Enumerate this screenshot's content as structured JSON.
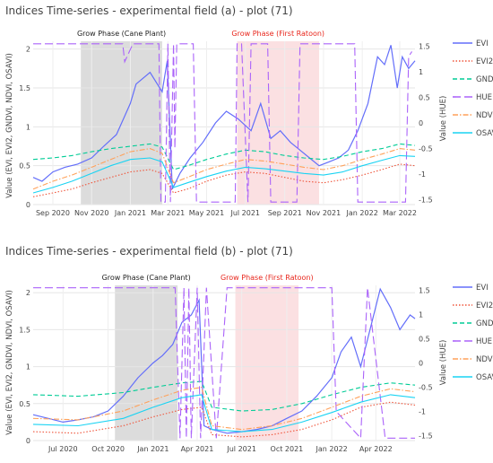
{
  "chart_data": [
    {
      "type": "line",
      "title": "Indices Time-series - experimental field (a) - plot (71)",
      "ylabel": "Value (EVI, EVI2, GNDVI, NDVI, OSAVI)",
      "y2label": "Value (HUE)",
      "ylim": [
        0,
        2.1
      ],
      "y2lim": [
        -1.6,
        1.6
      ],
      "xlim": [
        "2020-08-01",
        "2022-03-25"
      ],
      "xticks": [
        "Sep 2020",
        "Nov 2020",
        "Jan 2021",
        "Mar 2021",
        "May 2021",
        "Jul 2021",
        "Sep 2021",
        "Nov 2021",
        "Jan 2022",
        "Mar 2022"
      ],
      "xtick_dates": [
        "2020-09-01",
        "2020-11-01",
        "2021-01-01",
        "2021-03-01",
        "2021-05-01",
        "2021-07-01",
        "2021-09-01",
        "2021-11-01",
        "2022-01-01",
        "2022-03-01"
      ],
      "yticks": [
        "0",
        "0.5",
        "1",
        "1.5",
        "2"
      ],
      "yticks_vals": [
        0,
        0.5,
        1,
        1.5,
        2
      ],
      "y2ticks": [
        "-1.5",
        "-1",
        "-0.5",
        "0",
        "0.5",
        "1",
        "1.5"
      ],
      "y2ticks_vals": [
        -1.5,
        -1,
        -0.5,
        0,
        0.5,
        1,
        1.5
      ],
      "bands": [
        {
          "label": "Grow Phase (Cane Plant)",
          "start": "2020-10-15",
          "end": "2021-02-20",
          "fill": "#d6d6d6",
          "text_color": "#222222"
        },
        {
          "label": "Grow Phase (First Ratoon)",
          "start": "2021-06-18",
          "end": "2021-10-25",
          "fill": "#fadadd",
          "text_color": "#e8261c"
        }
      ],
      "series": [
        {
          "name": "EVI",
          "axis": "y",
          "color": "#636efa",
          "dash": "solid",
          "x": [
            "2020-08-01",
            "2020-08-15",
            "2020-09-01",
            "2020-09-20",
            "2020-10-10",
            "2020-11-01",
            "2020-11-20",
            "2020-12-10",
            "2021-01-01",
            "2021-01-10",
            "2021-02-01",
            "2021-02-20",
            "2021-02-28",
            "2021-03-08",
            "2021-03-20",
            "2021-04-05",
            "2021-04-25",
            "2021-05-15",
            "2021-06-01",
            "2021-06-20",
            "2021-07-10",
            "2021-07-25",
            "2021-08-10",
            "2021-08-25",
            "2021-09-10",
            "2021-09-25",
            "2021-10-10",
            "2021-10-25",
            "2021-11-10",
            "2021-11-25",
            "2021-12-10",
            "2021-12-25",
            "2022-01-10",
            "2022-01-25",
            "2022-02-05",
            "2022-02-15",
            "2022-02-25",
            "2022-03-05",
            "2022-03-15",
            "2022-03-25"
          ],
          "values": [
            0.35,
            0.3,
            0.42,
            0.48,
            0.52,
            0.6,
            0.75,
            0.9,
            1.3,
            1.55,
            1.7,
            1.45,
            1.85,
            0.2,
            0.4,
            0.6,
            0.8,
            1.05,
            1.2,
            1.1,
            0.95,
            1.3,
            0.85,
            0.95,
            0.8,
            0.7,
            0.6,
            0.5,
            0.55,
            0.6,
            0.7,
            0.95,
            1.3,
            1.9,
            1.8,
            2.05,
            1.5,
            1.9,
            1.75,
            1.85
          ]
        },
        {
          "name": "EVI2",
          "axis": "y",
          "color": "#ef553b",
          "dash": "dot",
          "x": [
            "2020-08-01",
            "2020-09-01",
            "2020-10-01",
            "2020-11-01",
            "2020-12-01",
            "2021-01-01",
            "2021-02-01",
            "2021-02-20",
            "2021-03-10",
            "2021-04-01",
            "2021-05-01",
            "2021-06-01",
            "2021-07-01",
            "2021-08-01",
            "2021-09-01",
            "2021-10-01",
            "2021-11-01",
            "2021-12-01",
            "2022-01-01",
            "2022-02-01",
            "2022-03-01",
            "2022-03-25"
          ],
          "values": [
            0.1,
            0.15,
            0.2,
            0.28,
            0.35,
            0.42,
            0.45,
            0.4,
            0.15,
            0.2,
            0.3,
            0.38,
            0.42,
            0.4,
            0.35,
            0.3,
            0.28,
            0.32,
            0.38,
            0.45,
            0.52,
            0.5
          ]
        },
        {
          "name": "GNDVI",
          "axis": "y",
          "color": "#00cc96",
          "dash": "dash",
          "x": [
            "2020-08-01",
            "2020-09-01",
            "2020-10-01",
            "2020-11-01",
            "2020-12-01",
            "2021-01-01",
            "2021-02-01",
            "2021-02-20",
            "2021-03-10",
            "2021-04-01",
            "2021-05-01",
            "2021-06-01",
            "2021-07-01",
            "2021-08-01",
            "2021-09-01",
            "2021-10-01",
            "2021-11-01",
            "2021-12-01",
            "2022-01-01",
            "2022-02-01",
            "2022-03-01",
            "2022-03-25"
          ],
          "values": [
            0.58,
            0.6,
            0.63,
            0.68,
            0.72,
            0.75,
            0.78,
            0.74,
            0.45,
            0.5,
            0.58,
            0.65,
            0.7,
            0.68,
            0.63,
            0.6,
            0.58,
            0.62,
            0.68,
            0.72,
            0.78,
            0.76
          ]
        },
        {
          "name": "HUE",
          "axis": "y2",
          "color": "#ab63fa",
          "dash": "longdash",
          "x": [
            "2020-08-01",
            "2020-09-01",
            "2020-10-01",
            "2020-12-20",
            "2020-12-23",
            "2021-01-05",
            "2021-02-15",
            "2021-02-18",
            "2021-02-25",
            "2021-03-01",
            "2021-03-05",
            "2021-03-10",
            "2021-03-12",
            "2021-03-15",
            "2021-03-20",
            "2021-04-10",
            "2021-04-15",
            "2021-06-15",
            "2021-06-18",
            "2021-06-25",
            "2021-07-05",
            "2021-07-10",
            "2021-08-05",
            "2021-08-10",
            "2021-09-20",
            "2021-09-25",
            "2021-10-01",
            "2021-12-20",
            "2021-12-25",
            "2022-03-10",
            "2022-03-15",
            "2022-03-20"
          ],
          "values": [
            1.55,
            1.55,
            1.55,
            1.55,
            1.2,
            1.55,
            1.55,
            -1.55,
            -1.55,
            1.55,
            -1.55,
            1.55,
            -0.5,
            1.55,
            1.55,
            1.55,
            -1.55,
            -1.55,
            1.55,
            1.55,
            -1.55,
            1.55,
            1.55,
            -1.55,
            -1.55,
            1.55,
            1.55,
            1.55,
            -1.55,
            -1.55,
            1.3,
            1.4
          ]
        },
        {
          "name": "NDVI",
          "axis": "y",
          "color": "#ffa15a",
          "dash": "dashdot",
          "x": [
            "2020-08-01",
            "2020-09-01",
            "2020-10-01",
            "2020-11-01",
            "2020-12-01",
            "2021-01-01",
            "2021-02-01",
            "2021-02-20",
            "2021-03-10",
            "2021-04-01",
            "2021-05-01",
            "2021-06-01",
            "2021-07-01",
            "2021-08-01",
            "2021-09-01",
            "2021-10-01",
            "2021-11-01",
            "2021-12-01",
            "2022-01-01",
            "2022-02-01",
            "2022-03-01",
            "2022-03-25"
          ],
          "values": [
            0.2,
            0.3,
            0.38,
            0.48,
            0.58,
            0.68,
            0.72,
            0.66,
            0.28,
            0.35,
            0.45,
            0.52,
            0.58,
            0.56,
            0.52,
            0.48,
            0.45,
            0.5,
            0.58,
            0.65,
            0.72,
            0.7
          ]
        },
        {
          "name": "OSAVI",
          "axis": "y",
          "color": "#19d3f3",
          "dash": "solid",
          "x": [
            "2020-08-01",
            "2020-09-01",
            "2020-10-01",
            "2020-11-01",
            "2020-12-01",
            "2021-01-01",
            "2021-02-01",
            "2021-02-20",
            "2021-03-10",
            "2021-04-01",
            "2021-05-01",
            "2021-06-01",
            "2021-07-01",
            "2021-08-01",
            "2021-09-01",
            "2021-10-01",
            "2021-11-01",
            "2021-12-01",
            "2022-01-01",
            "2022-02-01",
            "2022-03-01",
            "2022-03-25"
          ],
          "values": [
            0.15,
            0.22,
            0.3,
            0.4,
            0.5,
            0.58,
            0.6,
            0.55,
            0.22,
            0.28,
            0.36,
            0.43,
            0.48,
            0.46,
            0.43,
            0.4,
            0.38,
            0.42,
            0.5,
            0.57,
            0.63,
            0.62
          ]
        }
      ]
    },
    {
      "type": "line",
      "title": "Indices Time-series - experimental field (b) - plot (71)",
      "ylabel": "Value (EVI, EVI2, GNDVI, NDVI, OSAVI)",
      "y2label": "Value (HUE)",
      "ylim": [
        0,
        2.1
      ],
      "y2lim": [
        -1.6,
        1.6
      ],
      "xlim": [
        "2020-05-01",
        "2022-06-20"
      ],
      "xticks": [
        "Jul 2020",
        "Oct 2020",
        "Jan 2021",
        "Apr 2021",
        "Jul 2021",
        "Oct 2021",
        "Jan 2022",
        "Apr 2022"
      ],
      "xtick_dates": [
        "2020-07-01",
        "2020-10-01",
        "2021-01-01",
        "2021-04-01",
        "2021-07-01",
        "2021-10-01",
        "2022-01-01",
        "2022-04-01"
      ],
      "yticks": [
        "0",
        "0.5",
        "1",
        "1.5",
        "2"
      ],
      "yticks_vals": [
        0,
        0.5,
        1,
        1.5,
        2
      ],
      "y2ticks": [
        "-1.5",
        "-1",
        "-0.5",
        "0",
        "0.5",
        "1",
        "1.5"
      ],
      "y2ticks_vals": [
        -1.5,
        -1,
        -0.5,
        0,
        0.5,
        1,
        1.5
      ],
      "bands": [
        {
          "label": "Grow Phase (Cane Plant)",
          "start": "2020-10-15",
          "end": "2021-02-20",
          "fill": "#d6d6d6",
          "text_color": "#222222"
        },
        {
          "label": "Grow Phase (First Ratoon)",
          "start": "2021-06-18",
          "end": "2021-10-25",
          "fill": "#fadadd",
          "text_color": "#e8261c"
        }
      ],
      "series": [
        {
          "name": "EVI",
          "axis": "y",
          "color": "#636efa",
          "dash": "solid",
          "x": [
            "2020-05-01",
            "2020-06-01",
            "2020-07-01",
            "2020-08-01",
            "2020-09-01",
            "2020-10-01",
            "2020-11-01",
            "2020-12-01",
            "2021-01-01",
            "2021-01-20",
            "2021-02-10",
            "2021-03-01",
            "2021-03-20",
            "2021-04-05",
            "2021-04-15",
            "2021-05-01",
            "2021-06-01",
            "2021-07-01",
            "2021-08-01",
            "2021-09-01",
            "2021-10-01",
            "2021-11-01",
            "2021-12-01",
            "2022-01-01",
            "2022-01-20",
            "2022-02-10",
            "2022-03-01",
            "2022-03-20",
            "2022-04-10",
            "2022-05-01",
            "2022-05-20",
            "2022-06-10",
            "2022-06-20"
          ],
          "values": [
            0.35,
            0.3,
            0.25,
            0.28,
            0.32,
            0.4,
            0.6,
            0.85,
            1.05,
            1.15,
            1.3,
            1.6,
            1.7,
            1.9,
            0.2,
            0.15,
            0.1,
            0.12,
            0.15,
            0.2,
            0.3,
            0.4,
            0.6,
            0.85,
            1.2,
            1.4,
            1.0,
            1.5,
            2.05,
            1.8,
            1.5,
            1.7,
            1.65
          ]
        },
        {
          "name": "EVI2",
          "axis": "y",
          "color": "#ef553b",
          "dash": "dot",
          "x": [
            "2020-05-01",
            "2020-08-01",
            "2020-11-01",
            "2021-01-01",
            "2021-03-01",
            "2021-04-10",
            "2021-05-01",
            "2021-07-01",
            "2021-09-01",
            "2021-11-01",
            "2022-01-01",
            "2022-03-01",
            "2022-05-01",
            "2022-06-20"
          ],
          "values": [
            0.12,
            0.1,
            0.2,
            0.32,
            0.42,
            0.45,
            0.08,
            0.05,
            0.08,
            0.15,
            0.28,
            0.45,
            0.52,
            0.48
          ]
        },
        {
          "name": "GNDVI",
          "axis": "y",
          "color": "#00cc96",
          "dash": "dash",
          "x": [
            "2020-05-01",
            "2020-08-01",
            "2020-11-01",
            "2021-01-01",
            "2021-03-01",
            "2021-04-10",
            "2021-05-01",
            "2021-07-01",
            "2021-09-01",
            "2021-11-01",
            "2022-01-01",
            "2022-03-01",
            "2022-05-01",
            "2022-06-20"
          ],
          "values": [
            0.62,
            0.6,
            0.65,
            0.72,
            0.78,
            0.8,
            0.45,
            0.4,
            0.42,
            0.5,
            0.62,
            0.72,
            0.78,
            0.75
          ]
        },
        {
          "name": "HUE",
          "axis": "y2",
          "color": "#ab63fa",
          "dash": "longdash",
          "x": [
            "2020-05-01",
            "2021-02-15",
            "2021-02-25",
            "2021-03-05",
            "2021-03-10",
            "2021-03-15",
            "2021-03-20",
            "2021-04-01",
            "2021-04-08",
            "2021-04-20",
            "2021-05-10",
            "2021-06-01",
            "2021-06-05",
            "2022-01-01",
            "2022-01-10",
            "2022-03-01",
            "2022-03-15",
            "2022-04-20",
            "2022-05-10",
            "2022-06-20"
          ],
          "values": [
            1.55,
            1.55,
            -1.55,
            1.55,
            -1.55,
            1.55,
            -1.55,
            1.55,
            -1.55,
            1.55,
            -1.55,
            1.55,
            1.55,
            1.55,
            -1.0,
            -1.55,
            1.55,
            -1.55,
            -1.55,
            -1.55
          ]
        },
        {
          "name": "NDVI",
          "axis": "y",
          "color": "#ffa15a",
          "dash": "dashdot",
          "x": [
            "2020-05-01",
            "2020-08-01",
            "2020-11-01",
            "2021-01-01",
            "2021-03-01",
            "2021-04-10",
            "2021-05-01",
            "2021-07-01",
            "2021-09-01",
            "2021-11-01",
            "2022-01-01",
            "2022-03-01",
            "2022-05-01",
            "2022-06-20"
          ],
          "values": [
            0.3,
            0.28,
            0.4,
            0.55,
            0.68,
            0.72,
            0.2,
            0.15,
            0.2,
            0.3,
            0.45,
            0.6,
            0.7,
            0.66
          ]
        },
        {
          "name": "OSAVI",
          "axis": "y",
          "color": "#19d3f3",
          "dash": "solid",
          "x": [
            "2020-05-01",
            "2020-08-01",
            "2020-11-01",
            "2021-01-01",
            "2021-03-01",
            "2021-04-10",
            "2021-05-01",
            "2021-07-01",
            "2021-09-01",
            "2021-11-01",
            "2022-01-01",
            "2022-03-01",
            "2022-05-01",
            "2022-06-20"
          ],
          "values": [
            0.22,
            0.2,
            0.3,
            0.45,
            0.58,
            0.62,
            0.15,
            0.12,
            0.15,
            0.25,
            0.38,
            0.52,
            0.62,
            0.58
          ]
        }
      ]
    }
  ]
}
